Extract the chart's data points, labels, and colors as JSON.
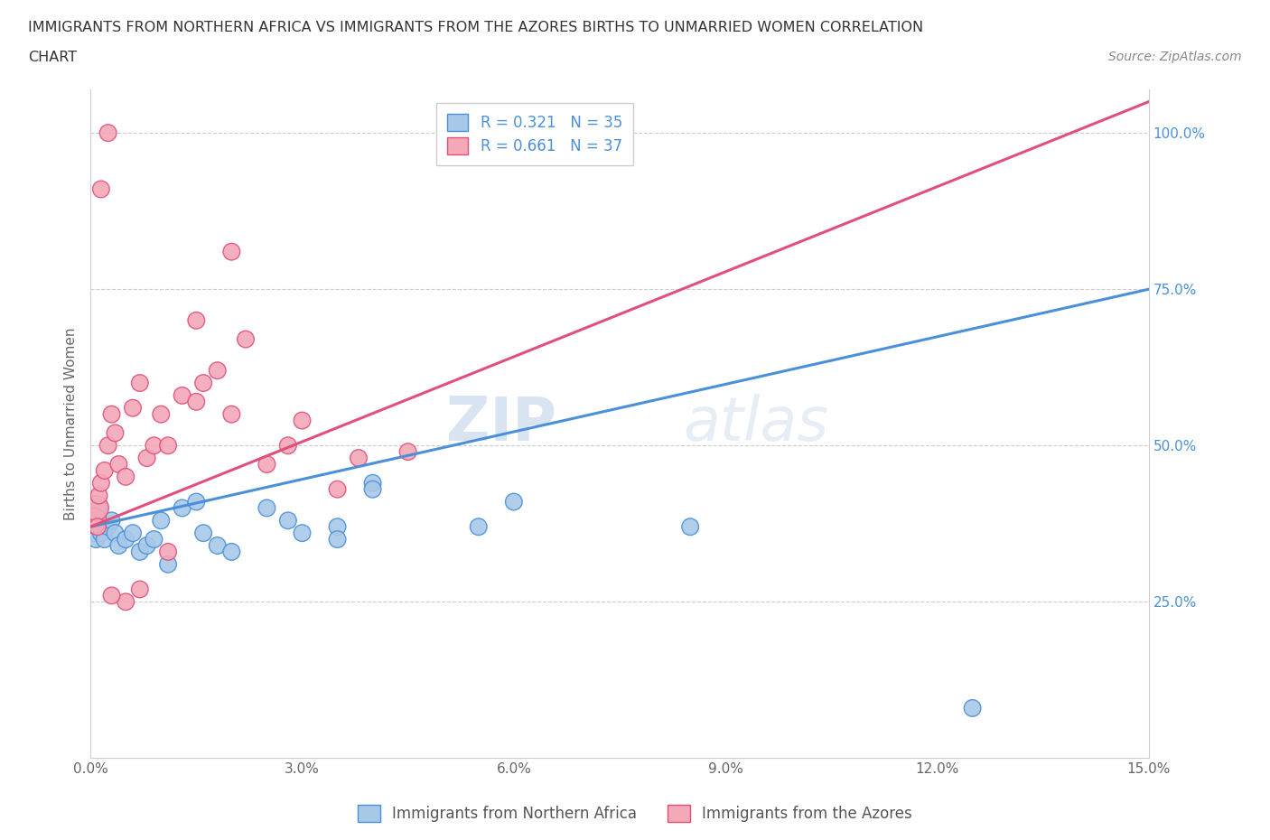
{
  "title_line1": "IMMIGRANTS FROM NORTHERN AFRICA VS IMMIGRANTS FROM THE AZORES BIRTHS TO UNMARRIED WOMEN CORRELATION",
  "title_line2": "CHART",
  "source_text": "Source: ZipAtlas.com",
  "ylabel": "Births to Unmarried Women",
  "xlim": [
    0,
    15
  ],
  "ylim": [
    0,
    107
  ],
  "xticks": [
    0,
    3,
    6,
    9,
    12,
    15
  ],
  "xtick_labels": [
    "0.0%",
    "3.0%",
    "6.0%",
    "9.0%",
    "12.0%",
    "15.0%"
  ],
  "yticks": [
    25,
    50,
    75,
    100
  ],
  "ytick_labels": [
    "25.0%",
    "50.0%",
    "75.0%",
    "100.0%"
  ],
  "blue_color": "#a8c8e8",
  "pink_color": "#f4a8b8",
  "blue_line_color": "#4a90d9",
  "pink_line_color": "#e0507a",
  "R_blue": 0.321,
  "N_blue": 35,
  "R_pink": 0.661,
  "N_pink": 37,
  "legend_label_blue": "Immigrants from Northern Africa",
  "legend_label_pink": "Immigrants from the Azores",
  "watermark_text": "ZIPatlas",
  "blue_scatter_x": [
    0.05,
    0.05,
    0.08,
    0.1,
    0.1,
    0.12,
    0.15,
    0.2,
    0.25,
    0.3,
    0.35,
    0.4,
    0.5,
    0.6,
    0.7,
    0.8,
    0.9,
    1.0,
    1.1,
    1.3,
    1.5,
    1.6,
    1.8,
    2.0,
    2.5,
    2.8,
    3.0,
    3.5,
    3.5,
    4.0,
    4.0,
    5.5,
    6.0,
    8.5,
    12.5
  ],
  "blue_scatter_y": [
    38,
    36,
    35,
    37,
    38,
    40,
    36,
    35,
    37,
    38,
    36,
    34,
    35,
    36,
    33,
    34,
    35,
    38,
    31,
    40,
    41,
    36,
    34,
    33,
    40,
    38,
    36,
    37,
    35,
    44,
    43,
    37,
    41,
    37,
    8
  ],
  "pink_scatter_x": [
    0.05,
    0.08,
    0.1,
    0.12,
    0.15,
    0.2,
    0.25,
    0.3,
    0.35,
    0.4,
    0.5,
    0.6,
    0.7,
    0.8,
    0.9,
    1.0,
    1.1,
    1.3,
    1.5,
    1.6,
    1.8,
    2.0,
    2.5,
    2.8,
    3.0,
    3.5,
    3.8,
    1.1,
    0.7,
    0.5,
    0.3,
    0.15,
    2.2,
    1.5,
    2.0,
    4.5,
    0.25
  ],
  "pink_scatter_y": [
    38,
    40,
    37,
    42,
    44,
    46,
    50,
    55,
    52,
    47,
    45,
    56,
    60,
    48,
    50,
    55,
    50,
    58,
    57,
    60,
    62,
    55,
    47,
    50,
    54,
    43,
    48,
    33,
    27,
    25,
    26,
    91,
    67,
    70,
    81,
    49,
    100
  ],
  "blue_large_x": [
    0.05
  ],
  "blue_large_y": [
    38
  ],
  "pink_large_x": [
    0.05
  ],
  "pink_large_y": [
    38
  ]
}
